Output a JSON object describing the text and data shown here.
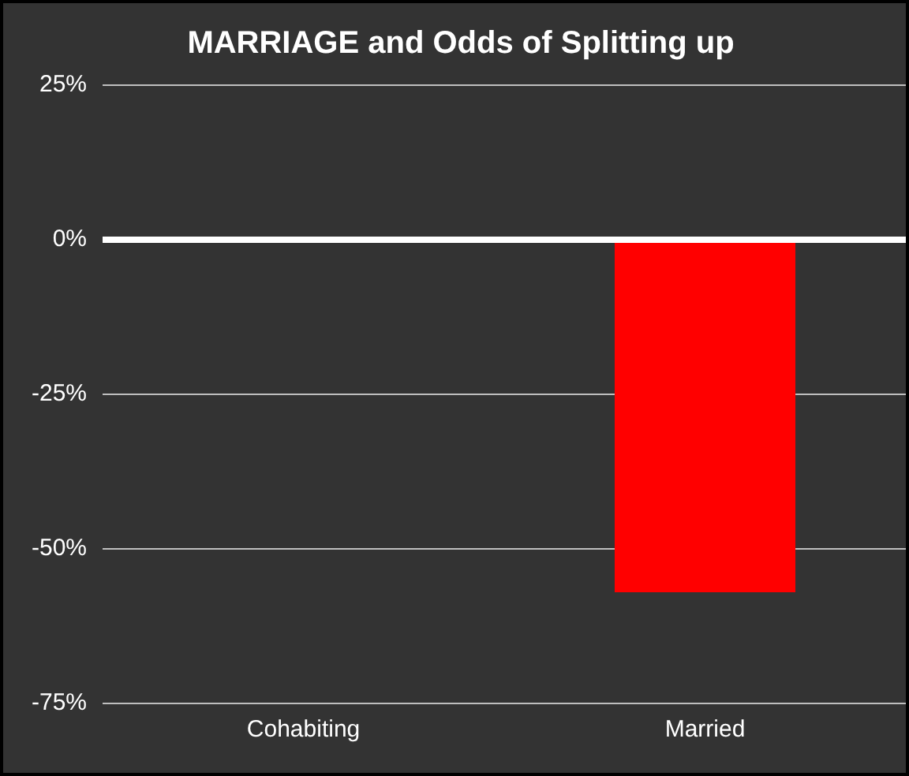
{
  "chart_data": {
    "type": "bar",
    "title": "MARRIAGE and Odds of Splitting up",
    "categories": [
      "Cohabiting",
      "Married"
    ],
    "values": [
      0,
      -57
    ],
    "color": "#ff0000",
    "ylim": [
      -75,
      25
    ],
    "yticks": [
      {
        "value": 25,
        "label": "25%"
      },
      {
        "value": 0,
        "label": "0%"
      },
      {
        "value": -25,
        "label": "-25%"
      },
      {
        "value": -50,
        "label": "-50%"
      },
      {
        "value": -75,
        "label": "-75%"
      }
    ],
    "grid": "y"
  }
}
